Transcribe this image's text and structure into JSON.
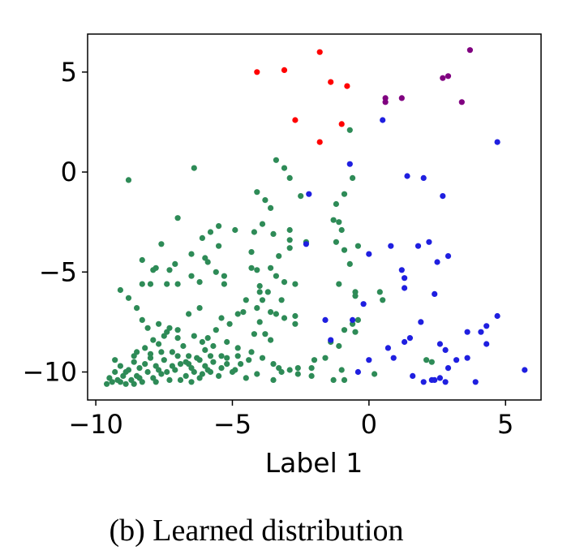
{
  "chart_data": {
    "type": "scatter",
    "xlabel": "Label 1",
    "ylabel": "",
    "xlim": [
      -10.3,
      6.3
    ],
    "ylim": [
      -11.4,
      6.9
    ],
    "xticks": [
      {
        "value": -10,
        "label": "−10"
      },
      {
        "value": -5,
        "label": "−5"
      },
      {
        "value": 0,
        "label": "0"
      },
      {
        "value": 5,
        "label": "5"
      }
    ],
    "yticks": [
      {
        "value": 5,
        "label": "5"
      },
      {
        "value": 0,
        "label": "0"
      },
      {
        "value": -5,
        "label": "−5"
      },
      {
        "value": -10,
        "label": "−10"
      }
    ],
    "grid": false,
    "series": [
      {
        "color": "#2e8b57",
        "points": [
          [
            -8.8,
            -0.4
          ],
          [
            -6.4,
            0.2
          ],
          [
            -3.4,
            0.6
          ],
          [
            -3.1,
            0.2
          ],
          [
            -2.9,
            -0.3
          ],
          [
            -0.7,
            2.1
          ],
          [
            -0.6,
            -0.3
          ],
          [
            -0.9,
            -1.1
          ],
          [
            -1.2,
            -1.6
          ],
          [
            -2.5,
            -1.2
          ],
          [
            -4.1,
            -1.0
          ],
          [
            -3.8,
            -1.4
          ],
          [
            -3.6,
            -1.8
          ],
          [
            -7.0,
            -2.3
          ],
          [
            -3.9,
            -2.6
          ],
          [
            -4.2,
            -3.0
          ],
          [
            -4.9,
            -2.9
          ],
          [
            -5.5,
            -2.7
          ],
          [
            -5.8,
            -3.0
          ],
          [
            -6.1,
            -3.3
          ],
          [
            -2.9,
            -2.9
          ],
          [
            -3.5,
            -3.1
          ],
          [
            -2.9,
            -3.4
          ],
          [
            -2.3,
            -3.5
          ],
          [
            -1.3,
            -2.4
          ],
          [
            -1.1,
            -2.5
          ],
          [
            -1.0,
            -2.9
          ],
          [
            -1.2,
            -3.5
          ],
          [
            -0.4,
            -3.7
          ],
          [
            -0.9,
            -3.9
          ],
          [
            -2.9,
            -3.8
          ],
          [
            -3.3,
            -4.2
          ],
          [
            -3.6,
            -4.8
          ],
          [
            -4.3,
            -4.0
          ],
          [
            -5.5,
            -3.7
          ],
          [
            -6.0,
            -4.3
          ],
          [
            -6.5,
            -4.1
          ],
          [
            -7.6,
            -3.6
          ],
          [
            -7.8,
            -4.8
          ],
          [
            -8.3,
            -4.4
          ],
          [
            -7.9,
            -4.9
          ],
          [
            -7.3,
            -4.9
          ],
          [
            -7.1,
            -4.6
          ],
          [
            -6.5,
            -5.2
          ],
          [
            -5.6,
            -5.0
          ],
          [
            -5.9,
            -4.5
          ],
          [
            -5.3,
            -5.2
          ],
          [
            -4.3,
            -4.8
          ],
          [
            -4.1,
            -4.9
          ],
          [
            -3.4,
            -5.2
          ],
          [
            -3.1,
            -5.5
          ],
          [
            -2.7,
            -5.6
          ],
          [
            -0.7,
            -4.6
          ],
          [
            -1.1,
            -5.6
          ],
          [
            -0.5,
            -6.0
          ],
          [
            -4.0,
            -5.7
          ],
          [
            -4.0,
            -6.0
          ],
          [
            -3.7,
            -6.0
          ],
          [
            -3.9,
            -6.4
          ],
          [
            -6.2,
            -5.5
          ],
          [
            -5.3,
            -5.6
          ],
          [
            -7.0,
            -5.6
          ],
          [
            -7.4,
            -5.6
          ],
          [
            -8.0,
            -5.6
          ],
          [
            -8.3,
            -5.6
          ],
          [
            -8.8,
            -6.3
          ],
          [
            -9.1,
            -5.9
          ],
          [
            -8.5,
            -6.8
          ],
          [
            -8.3,
            -7.4
          ],
          [
            -8.1,
            -7.8
          ],
          [
            -7.7,
            -7.6
          ],
          [
            -7.3,
            -7.8
          ],
          [
            -6.2,
            -6.8
          ],
          [
            -6.6,
            -7.1
          ],
          [
            -5.4,
            -7.3
          ],
          [
            -5.1,
            -7.6
          ],
          [
            -4.8,
            -7.1
          ],
          [
            -4.6,
            -7.0
          ],
          [
            -4.5,
            -6.4
          ],
          [
            -4.1,
            -6.8
          ],
          [
            -3.2,
            -6.4
          ],
          [
            -3.6,
            -7.0
          ],
          [
            -3.4,
            -7.1
          ],
          [
            -3.1,
            -7.3
          ],
          [
            -2.7,
            -7.2
          ],
          [
            -2.7,
            -7.6
          ],
          [
            -4.0,
            -7.5
          ],
          [
            -4.2,
            -8.1
          ],
          [
            -3.8,
            -8.1
          ],
          [
            -3.6,
            -8.4
          ],
          [
            -5.6,
            -7.9
          ],
          [
            -5.9,
            -8.3
          ],
          [
            -6.1,
            -8.5
          ],
          [
            -5.7,
            -8.7
          ],
          [
            -5.2,
            -8.5
          ],
          [
            -4.8,
            -8.8
          ],
          [
            -4.3,
            -9.0
          ],
          [
            -3.9,
            -9.3
          ],
          [
            -3.5,
            -9.6
          ],
          [
            -3.3,
            -9.8
          ],
          [
            -2.9,
            -9.9
          ],
          [
            -2.6,
            -10.1
          ],
          [
            -2.1,
            -9.8
          ],
          [
            -2.0,
            -9.4
          ],
          [
            -1.6,
            -9.3
          ],
          [
            -1.4,
            -8.5
          ],
          [
            -1.1,
            -8.7
          ],
          [
            -0.9,
            -7.9
          ],
          [
            -0.6,
            -7.6
          ],
          [
            -0.5,
            -8.0
          ],
          [
            -0.4,
            -7.4
          ],
          [
            -0.5,
            -6.2
          ],
          [
            0.4,
            -6.0
          ],
          [
            0.5,
            -6.4
          ],
          [
            -1.0,
            -9.9
          ],
          [
            -0.9,
            -10.4
          ],
          [
            -1.3,
            -10.4
          ],
          [
            0.2,
            -10.1
          ],
          [
            2.1,
            -9.4
          ],
          [
            2.3,
            -9.5
          ],
          [
            -2.1,
            -10.2
          ],
          [
            -2.6,
            -9.8
          ],
          [
            -3.2,
            -10.0
          ],
          [
            -3.5,
            -10.4
          ],
          [
            -4.1,
            -10.1
          ],
          [
            -4.5,
            -10.3
          ],
          [
            -4.9,
            -9.9
          ],
          [
            -5.2,
            -9.6
          ],
          [
            -5.4,
            -9.2
          ],
          [
            -5.7,
            -9.5
          ],
          [
            -5.5,
            -10.2
          ],
          [
            -5.9,
            -9.9
          ],
          [
            -6.1,
            -10.1
          ],
          [
            -6.2,
            -10.3
          ],
          [
            -6.3,
            -9.3
          ],
          [
            -6.5,
            -9.8
          ],
          [
            -6.6,
            -9.2
          ],
          [
            -6.7,
            -10.2
          ],
          [
            -6.8,
            -8.7
          ],
          [
            -6.9,
            -9.6
          ],
          [
            -7.0,
            -8.3
          ],
          [
            -7.1,
            -9.9
          ],
          [
            -7.2,
            -9.0
          ],
          [
            -7.3,
            -10.4
          ],
          [
            -7.4,
            -8.0
          ],
          [
            -7.5,
            -9.4
          ],
          [
            -7.6,
            -10.1
          ],
          [
            -7.7,
            -8.6
          ],
          [
            -7.8,
            -9.7
          ],
          [
            -7.9,
            -10.3
          ],
          [
            -8.0,
            -9.1
          ],
          [
            -8.1,
            -10.0
          ],
          [
            -8.2,
            -8.8
          ],
          [
            -8.3,
            -10.5
          ],
          [
            -8.4,
            -9.8
          ],
          [
            -8.5,
            -10.2
          ],
          [
            -8.6,
            -9.5
          ],
          [
            -8.7,
            -10.4
          ],
          [
            -8.8,
            -9.9
          ],
          [
            -8.9,
            -10.6
          ],
          [
            -9.0,
            -10.2
          ],
          [
            -9.1,
            -9.7
          ],
          [
            -9.2,
            -10.4
          ],
          [
            -9.3,
            -10.0
          ],
          [
            -9.4,
            -10.5
          ],
          [
            -9.5,
            -10.3
          ],
          [
            -9.6,
            -10.6
          ],
          [
            -9.3,
            -9.4
          ],
          [
            -8.6,
            -9.2
          ],
          [
            -7.9,
            -8.4
          ],
          [
            -7.5,
            -8.2
          ],
          [
            -7.0,
            -7.9
          ],
          [
            -6.4,
            -8.2
          ],
          [
            -6.0,
            -8.9
          ],
          [
            -6.7,
            -9.5
          ],
          [
            -7.2,
            -9.7
          ],
          [
            -7.7,
            -9.9
          ],
          [
            -8.2,
            -9.6
          ],
          [
            -8.5,
            -9.0
          ],
          [
            -8.0,
            -9.3
          ],
          [
            -6.4,
            -10.0
          ],
          [
            -6.0,
            -9.7
          ],
          [
            -5.8,
            -10.0
          ],
          [
            -5.4,
            -9.8
          ],
          [
            -5.0,
            -10.0
          ],
          [
            -4.7,
            -9.6
          ],
          [
            -4.4,
            -9.4
          ],
          [
            -6.9,
            -10.4
          ],
          [
            -7.4,
            -10.0
          ],
          [
            -8.4,
            -10.3
          ],
          [
            -8.9,
            -10.0
          ],
          [
            -6.6,
            -9.6
          ],
          [
            -7.0,
            -9.2
          ],
          [
            -7.6,
            -9.0
          ],
          [
            -6.2,
            -9.4
          ],
          [
            -5.8,
            -9.2
          ],
          [
            -5.2,
            -9.3
          ],
          [
            -4.8,
            -9.2
          ],
          [
            -8.6,
            -10.6
          ],
          [
            -9.1,
            -10.5
          ],
          [
            -7.8,
            -10.5
          ],
          [
            -6.5,
            -10.5
          ]
        ]
      },
      {
        "color": "#1f1fe0",
        "points": [
          [
            0.5,
            2.6
          ],
          [
            4.7,
            1.5
          ],
          [
            -0.7,
            0.4
          ],
          [
            -2.2,
            -1.1
          ],
          [
            1.4,
            -0.2
          ],
          [
            2.0,
            -0.3
          ],
          [
            2.7,
            -1.2
          ],
          [
            -2.3,
            -3.6
          ],
          [
            0.0,
            -4.1
          ],
          [
            0.8,
            -3.7
          ],
          [
            1.8,
            -3.7
          ],
          [
            2.2,
            -3.5
          ],
          [
            2.5,
            -4.5
          ],
          [
            2.9,
            -4.2
          ],
          [
            1.2,
            -4.9
          ],
          [
            1.3,
            -5.3
          ],
          [
            1.3,
            -5.8
          ],
          [
            2.4,
            -6.1
          ],
          [
            -0.2,
            -6.6
          ],
          [
            -1.6,
            -7.4
          ],
          [
            -1.4,
            -8.4
          ],
          [
            -0.6,
            -7.4
          ],
          [
            1.9,
            -7.5
          ],
          [
            1.5,
            -8.3
          ],
          [
            1.3,
            -8.5
          ],
          [
            2.6,
            -8.6
          ],
          [
            3.6,
            -8.0
          ],
          [
            4.1,
            -8.0
          ],
          [
            4.3,
            -7.7
          ],
          [
            4.7,
            -7.2
          ],
          [
            4.3,
            -8.6
          ],
          [
            0.7,
            -8.8
          ],
          [
            0.0,
            -9.4
          ],
          [
            -0.4,
            -10.0
          ],
          [
            0.9,
            -9.3
          ],
          [
            1.6,
            -10.2
          ],
          [
            2.0,
            -10.5
          ],
          [
            2.3,
            -10.4
          ],
          [
            2.6,
            -10.3
          ],
          [
            2.8,
            -10.5
          ],
          [
            2.9,
            -9.8
          ],
          [
            3.2,
            -9.4
          ],
          [
            3.6,
            -9.3
          ],
          [
            3.9,
            -10.5
          ],
          [
            5.7,
            -9.9
          ],
          [
            2.8,
            -8.9
          ],
          [
            2.4,
            -10.4
          ]
        ]
      },
      {
        "color": "#ff0000",
        "points": [
          [
            -4.1,
            5.0
          ],
          [
            -3.1,
            5.1
          ],
          [
            -1.8,
            6.0
          ],
          [
            -1.4,
            4.5
          ],
          [
            -0.8,
            4.3
          ],
          [
            -2.7,
            2.6
          ],
          [
            -1.0,
            2.4
          ],
          [
            -1.8,
            1.5
          ]
        ]
      },
      {
        "color": "#800080",
        "points": [
          [
            3.7,
            6.1
          ],
          [
            2.7,
            4.7
          ],
          [
            2.9,
            4.8
          ],
          [
            0.6,
            3.5
          ],
          [
            0.6,
            3.7
          ],
          [
            1.2,
            3.7
          ],
          [
            3.4,
            3.5
          ]
        ]
      }
    ],
    "caption": "(b) Learned distribution"
  }
}
